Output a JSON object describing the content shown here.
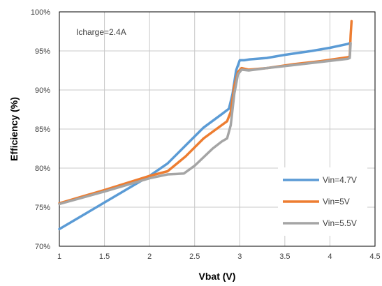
{
  "chart_data": {
    "type": "line",
    "title": "",
    "xlabel": "Vbat (V)",
    "ylabel": "Efficiency (%)",
    "annotation": "Icharge=2.4A",
    "xlim": [
      1,
      4.5
    ],
    "ylim": [
      70,
      100
    ],
    "x_ticks": [
      1,
      1.5,
      2,
      2.5,
      3,
      3.5,
      4,
      4.5
    ],
    "x_tick_labels": [
      "1",
      "1.5",
      "2",
      "2.5",
      "3",
      "3.5",
      "4",
      "4.5"
    ],
    "y_ticks": [
      70,
      75,
      80,
      85,
      90,
      95,
      100
    ],
    "y_tick_labels": [
      "70%",
      "75%",
      "80%",
      "85%",
      "90%",
      "95%",
      "100%"
    ],
    "grid": true,
    "legend_position": "bottom-right",
    "series": [
      {
        "name": "Vin=4.7V",
        "color": "#5b9bd5",
        "x": [
          1.0,
          1.5,
          2.0,
          2.2,
          2.4,
          2.6,
          2.8,
          2.88,
          2.92,
          2.96,
          3.0,
          3.05,
          3.1,
          3.3,
          3.5,
          3.8,
          4.0,
          4.2,
          4.22
        ],
        "y": [
          72.2,
          75.6,
          79.0,
          80.6,
          82.9,
          85.2,
          86.9,
          87.6,
          89.5,
          92.5,
          93.8,
          93.8,
          93.9,
          94.1,
          94.5,
          95.0,
          95.4,
          95.9,
          96.0
        ]
      },
      {
        "name": "Vin=5V",
        "color": "#ed7d31",
        "x": [
          1.0,
          1.5,
          2.0,
          2.2,
          2.4,
          2.6,
          2.8,
          2.86,
          2.9,
          2.94,
          2.98,
          3.02,
          3.1,
          3.3,
          3.6,
          3.9,
          4.2,
          4.22,
          4.23,
          4.24
        ],
        "y": [
          75.5,
          77.2,
          79.0,
          79.6,
          81.5,
          83.8,
          85.5,
          86.0,
          87.2,
          90.5,
          92.3,
          92.8,
          92.6,
          92.8,
          93.3,
          93.7,
          94.2,
          94.3,
          97.0,
          98.8
        ]
      },
      {
        "name": "Vin=5.5V",
        "color": "#a5a5a5",
        "x": [
          1.0,
          1.5,
          2.0,
          2.2,
          2.38,
          2.5,
          2.7,
          2.8,
          2.86,
          2.9,
          2.94,
          2.98,
          3.02,
          3.1,
          3.3,
          3.6,
          3.9,
          4.2,
          4.22,
          4.23
        ],
        "y": [
          75.4,
          77.0,
          78.7,
          79.2,
          79.3,
          80.3,
          82.5,
          83.4,
          83.8,
          85.5,
          89.5,
          92.0,
          92.6,
          92.5,
          92.8,
          93.2,
          93.6,
          94.0,
          94.1,
          96.0
        ]
      }
    ]
  }
}
